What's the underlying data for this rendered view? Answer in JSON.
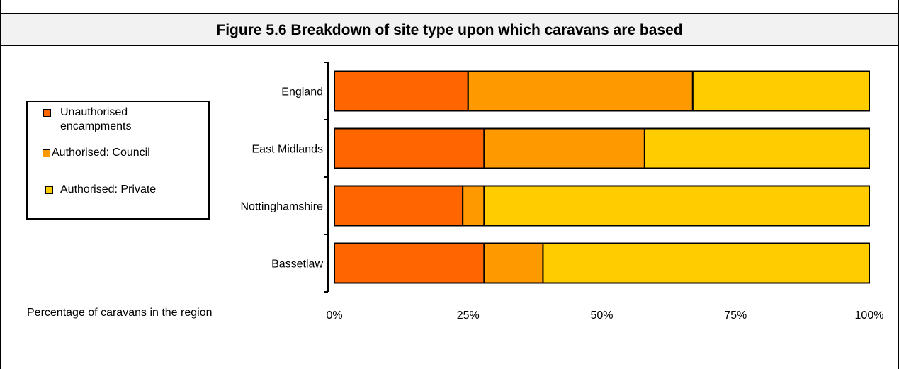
{
  "title": "Figure 5.6 Breakdown of site type upon which caravans are based",
  "legend": {
    "items": [
      {
        "label_lines": [
          "Unauthorised",
          "encampments"
        ],
        "color": "#ff6600"
      },
      {
        "label_lines": [
          "Authorised: Council"
        ],
        "color": "#ff9900"
      },
      {
        "label_lines": [
          "Authorised: Private"
        ],
        "color": "#ffcc00"
      }
    ]
  },
  "chart_data": {
    "type": "bar",
    "orientation": "horizontal",
    "stacked": true,
    "title": "Figure 5.6 Breakdown of site type upon which caravans are based",
    "xlabel": "Percentage of caravans in the region",
    "ylabel": "",
    "categories": [
      "England",
      "East Midlands",
      "Nottinghamshire",
      "Bassetlaw"
    ],
    "series": [
      {
        "name": "Unauthorised encampments",
        "color": "#ff6600",
        "values": [
          25,
          28,
          24,
          28
        ]
      },
      {
        "name": "Authorised: Council",
        "color": "#ff9900",
        "values": [
          42,
          30,
          4,
          11
        ]
      },
      {
        "name": "Authorised: Private",
        "color": "#ffcc00",
        "values": [
          33,
          42,
          72,
          61
        ]
      }
    ],
    "xlim": [
      0,
      100
    ],
    "x_ticks": [
      "0%",
      "25%",
      "50%",
      "75%",
      "100%"
    ],
    "grid": false,
    "legend_position": "left"
  }
}
